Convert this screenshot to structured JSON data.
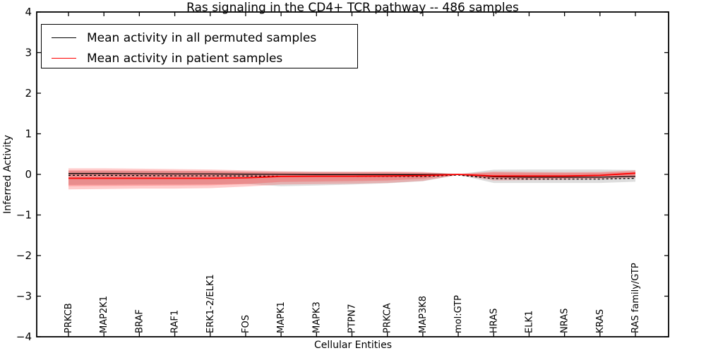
{
  "chart_data": {
    "type": "line",
    "title": "Ras signaling in the CD4+ TCR pathway -- 486 samples",
    "xlabel": "Cellular Entities",
    "ylabel": "Inferred Activity",
    "ylim": [
      -4,
      4
    ],
    "yticks": {
      "values": [
        4,
        3,
        2,
        1,
        0,
        -1,
        -2,
        -3,
        -4
      ],
      "labels": [
        "4",
        "3",
        "2",
        "1",
        "0",
        "−1",
        "−2",
        "−3",
        "−4"
      ]
    },
    "grid": false,
    "legend_position": "upper left",
    "categories": [
      "PRKCB",
      "MAP2K1",
      "BRAF",
      "RAF1",
      "ERK1-2/ELK1",
      "FOS",
      "MAPK1",
      "MAPK3",
      "PTPN7",
      "PRKCA",
      "MAP3K8",
      "mol:GTP",
      "HRAS",
      "ELK1",
      "NRAS",
      "KRAS",
      "RAS family/GTP"
    ],
    "series": [
      {
        "name": "Mean activity in all permuted samples",
        "color": "#000000",
        "style": "solid",
        "values": [
          0.02,
          0.02,
          0.015,
          0.01,
          0.01,
          0.005,
          0.0,
          -0.005,
          -0.005,
          -0.005,
          -0.005,
          0.0,
          -0.06,
          -0.07,
          -0.07,
          -0.07,
          -0.05
        ]
      },
      {
        "name": "Mean activity in patient samples",
        "color": "#ff0000",
        "style": "solid",
        "values": [
          -0.095,
          -0.095,
          -0.095,
          -0.095,
          -0.095,
          -0.085,
          -0.05,
          -0.045,
          -0.045,
          -0.04,
          -0.03,
          0.0,
          -0.04,
          -0.04,
          -0.04,
          -0.025,
          0.03
        ]
      },
      {
        "name": "baseline-dashed",
        "color": "#000000",
        "style": "dashed",
        "values": [
          -0.025,
          -0.025,
          -0.03,
          -0.035,
          -0.035,
          -0.04,
          -0.045,
          -0.05,
          -0.05,
          -0.05,
          -0.05,
          -0.015,
          -0.105,
          -0.115,
          -0.115,
          -0.115,
          -0.095
        ]
      }
    ],
    "bands": [
      {
        "name": "permuted-samples-band",
        "color": "#888888",
        "opacity": 0.28,
        "upper": [
          0.09,
          0.09,
          0.085,
          0.08,
          0.08,
          0.07,
          0.065,
          0.06,
          0.055,
          0.05,
          0.045,
          0.005,
          0.115,
          0.12,
          0.12,
          0.12,
          0.11
        ],
        "lower": [
          -0.26,
          -0.255,
          -0.25,
          -0.25,
          -0.245,
          -0.235,
          -0.29,
          -0.275,
          -0.25,
          -0.22,
          -0.17,
          -0.01,
          -0.21,
          -0.21,
          -0.21,
          -0.21,
          -0.18
        ]
      },
      {
        "name": "patient-samples-band-outer",
        "color": "#ff0000",
        "opacity": 0.2,
        "upper": [
          0.15,
          0.15,
          0.14,
          0.13,
          0.12,
          0.1,
          0.08,
          0.07,
          0.07,
          0.075,
          0.06,
          0.01,
          0.07,
          0.06,
          0.055,
          0.06,
          0.1
        ],
        "lower": [
          -0.37,
          -0.36,
          -0.35,
          -0.35,
          -0.34,
          -0.3,
          -0.25,
          -0.24,
          -0.23,
          -0.21,
          -0.16,
          -0.015,
          -0.15,
          -0.14,
          -0.13,
          -0.12,
          -0.09
        ]
      },
      {
        "name": "patient-samples-band-inner",
        "color": "#ff0000",
        "opacity": 0.2,
        "upper": [
          0.1,
          0.1,
          0.095,
          0.09,
          0.085,
          0.065,
          0.05,
          0.045,
          0.045,
          0.05,
          0.04,
          0.005,
          0.045,
          0.04,
          0.035,
          0.04,
          0.065
        ],
        "lower": [
          -0.29,
          -0.285,
          -0.28,
          -0.275,
          -0.27,
          -0.24,
          -0.185,
          -0.175,
          -0.165,
          -0.15,
          -0.11,
          -0.01,
          -0.105,
          -0.1,
          -0.09,
          -0.075,
          -0.055
        ]
      }
    ],
    "legend": {
      "entries": [
        {
          "label": "Mean activity in all permuted samples",
          "color": "#000000"
        },
        {
          "label": "Mean activity in patient samples",
          "color": "#ff0000"
        }
      ]
    },
    "frame_color": "#000000"
  }
}
